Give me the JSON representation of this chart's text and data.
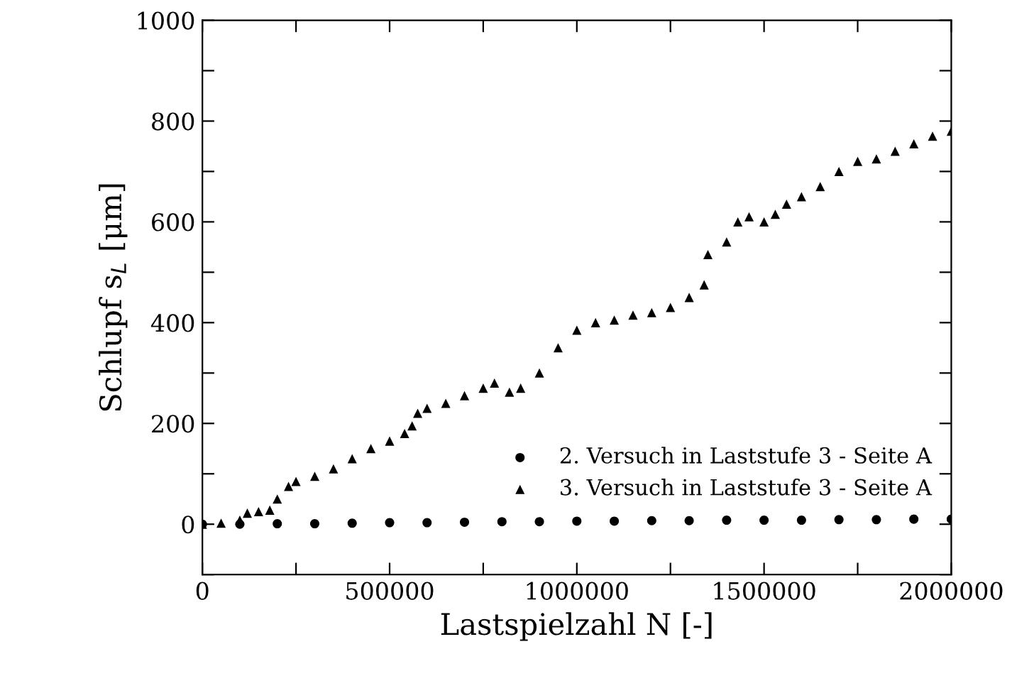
{
  "chart_data": {
    "type": "scatter",
    "xlabel": "Lastspielzahl N [-]",
    "ylabel": "Schlupf s$_{L}$ [μm]",
    "xlim": [
      0,
      2000000
    ],
    "ylim": [
      -100,
      1000
    ],
    "xticks": [
      0,
      {
        "value": 250000,
        "label": null
      },
      500000,
      {
        "value": 750000,
        "label": null
      },
      1000000,
      {
        "value": 1250000,
        "label": null
      },
      1500000,
      {
        "value": 1750000,
        "label": null
      },
      2000000
    ],
    "yticks": [
      {
        "value": -100,
        "label": null
      },
      0,
      {
        "value": 100,
        "label": null
      },
      200,
      {
        "value": 300,
        "label": null
      },
      400,
      {
        "value": 500,
        "label": null
      },
      600,
      {
        "value": 700,
        "label": null
      },
      800,
      {
        "value": 900,
        "label": null
      },
      1000
    ],
    "legend": "bottom right",
    "grid": false,
    "series": [
      {
        "name": "2. Versuch in Laststufe 3 - Seite A",
        "color": "#000000",
        "marker": "circle",
        "x": [
          0,
          100000,
          200000,
          300000,
          400000,
          500000,
          600000,
          700000,
          800000,
          900000,
          1000000,
          1100000,
          1200000,
          1300000,
          1400000,
          1500000,
          1600000,
          1700000,
          1800000,
          1900000,
          2000000
        ],
        "values": [
          0,
          0,
          1,
          1,
          2,
          3,
          3,
          4,
          5,
          5,
          6,
          6,
          7,
          7,
          8,
          8,
          8,
          9,
          9,
          10,
          10
        ]
      },
      {
        "name": "3. Versuch in Laststufe 3 - Seite A",
        "color": "#000000",
        "marker": "triangle",
        "x": [
          0,
          50000,
          100000,
          120000,
          150000,
          180000,
          200000,
          230000,
          250000,
          300000,
          350000,
          400000,
          450000,
          500000,
          540000,
          560000,
          575000,
          600000,
          650000,
          700000,
          750000,
          780000,
          820000,
          850000,
          900000,
          950000,
          1000000,
          1050000,
          1100000,
          1150000,
          1200000,
          1250000,
          1300000,
          1340000,
          1350000,
          1400000,
          1430000,
          1460000,
          1500000,
          1530000,
          1560000,
          1600000,
          1650000,
          1700000,
          1750000,
          1800000,
          1850000,
          1900000,
          1950000,
          2000000
        ],
        "values": [
          0,
          2,
          8,
          22,
          25,
          28,
          50,
          75,
          85,
          95,
          110,
          130,
          150,
          165,
          180,
          195,
          220,
          230,
          240,
          255,
          270,
          280,
          262,
          270,
          300,
          350,
          385,
          400,
          405,
          415,
          420,
          430,
          450,
          475,
          535,
          560,
          600,
          610,
          600,
          615,
          635,
          650,
          670,
          700,
          720,
          725,
          740,
          755,
          770,
          780
        ]
      }
    ]
  }
}
